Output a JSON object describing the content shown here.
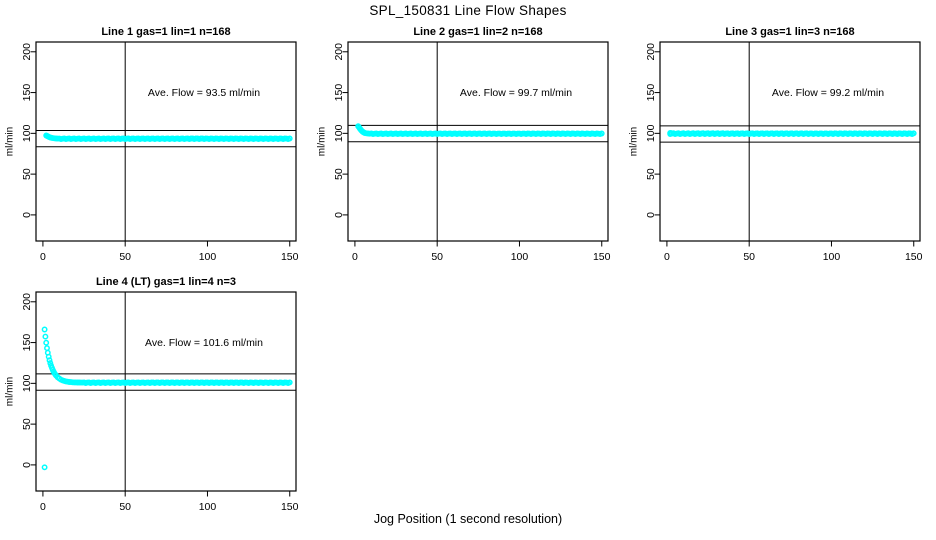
{
  "figure": {
    "title": "SPL_150831  Line Flow Shapes",
    "xlabel": "Jog Position (1 second resolution)",
    "background_color": "#ffffff",
    "marker_color": "#00ffff",
    "axis_color": "#000000"
  },
  "chart_data": [
    {
      "type": "scatter",
      "title": "Line 1 gas=1 lin=1 n=168",
      "gas": 1,
      "lin": 1,
      "n": 168,
      "ave_flow": 93.5,
      "annotation": "Ave. Flow =  93.5  ml/min",
      "ylabel": "ml/min",
      "xticks": [
        0,
        50,
        100,
        150
      ],
      "yticks": [
        0,
        50,
        100,
        150,
        200
      ],
      "xlim": [
        -4.2,
        153.8
      ],
      "ylim": [
        -32,
        212
      ],
      "vline_x": 50,
      "hlines": [
        103.5,
        83.5
      ],
      "grid": false,
      "marker": "open-circle",
      "series": [
        {
          "name": "flow",
          "color": "#00ffff",
          "segments": [
            {
              "pts": [
                [
                  2,
                  97.4
                ],
                [
                  2.6,
                  96.7
                ],
                [
                  3.2,
                  96.0
                ],
                [
                  3.8,
                  95.4
                ],
                [
                  4.5,
                  94.9
                ],
                [
                  5.2,
                  94.5
                ],
                [
                  6,
                  94.2
                ],
                [
                  7,
                  93.9
                ],
                [
                  8,
                  93.7
                ],
                [
                  9,
                  93.6
                ],
                [
                  10,
                  93.5
                ]
              ]
            },
            {
              "flat": [
                11,
                150,
                93.4
              ],
              "jitter": 0.45
            }
          ]
        }
      ]
    },
    {
      "type": "scatter",
      "title": "Line 2 gas=1 lin=2 n=168",
      "gas": 1,
      "lin": 2,
      "n": 168,
      "ave_flow": 99.7,
      "annotation": "Ave. Flow =  99.7  ml/min",
      "ylabel": "ml/min",
      "xticks": [
        0,
        50,
        100,
        150
      ],
      "yticks": [
        0,
        50,
        100,
        150,
        200
      ],
      "xlim": [
        -4.2,
        153.8
      ],
      "ylim": [
        -32,
        212
      ],
      "vline_x": 50,
      "hlines": [
        109.7,
        89.7
      ],
      "grid": false,
      "marker": "open-circle",
      "series": [
        {
          "name": "flow",
          "color": "#00ffff",
          "segments": [
            {
              "pts": [
                [
                  2,
                  108.8
                ],
                [
                  2.5,
                  107.5
                ],
                [
                  3,
                  106.0
                ],
                [
                  3.5,
                  104.6
                ],
                [
                  4,
                  103.4
                ],
                [
                  4.5,
                  102.4
                ],
                [
                  5,
                  101.6
                ],
                [
                  5.5,
                  100.9
                ],
                [
                  6,
                  100.4
                ],
                [
                  7,
                  100.0
                ],
                [
                  8,
                  99.8
                ],
                [
                  9,
                  99.6
                ]
              ]
            },
            {
              "flat": [
                10,
                150,
                99.5
              ],
              "jitter": 0.45
            }
          ]
        }
      ]
    },
    {
      "type": "scatter",
      "title": "Line 3 gas=1 lin=3 n=168",
      "gas": 1,
      "lin": 3,
      "n": 168,
      "ave_flow": 99.2,
      "annotation": "Ave. Flow =  99.2  ml/min",
      "ylabel": "ml/min",
      "xticks": [
        0,
        50,
        100,
        150
      ],
      "yticks": [
        0,
        50,
        100,
        150,
        200
      ],
      "xlim": [
        -4.2,
        153.8
      ],
      "ylim": [
        -32,
        212
      ],
      "vline_x": 50,
      "hlines": [
        109.2,
        89.2
      ],
      "grid": false,
      "marker": "open-circle",
      "series": [
        {
          "name": "flow",
          "color": "#00ffff",
          "segments": [
            {
              "pts": [
                [
                  2,
                  100.6
                ],
                [
                  2.5,
                  100.3
                ],
                [
                  3,
                  100.1
                ]
              ]
            },
            {
              "flat": [
                2,
                150,
                99.7
              ],
              "jitter": 0.55
            }
          ]
        }
      ]
    },
    {
      "type": "scatter",
      "title": "Line 4 (LT) gas=1 lin=4 n=3",
      "gas": 1,
      "lin": 4,
      "n": 3,
      "ave_flow": 101.6,
      "annotation": "Ave. Flow =  101.6  ml/min",
      "ylabel": "ml/min",
      "xticks": [
        0,
        50,
        100,
        150
      ],
      "yticks": [
        0,
        50,
        100,
        150,
        200
      ],
      "xlim": [
        -4.2,
        153.8
      ],
      "ylim": [
        -32,
        212
      ],
      "vline_x": 50,
      "hlines": [
        111.6,
        91.6
      ],
      "grid": false,
      "marker": "open-circle",
      "series": [
        {
          "name": "flow",
          "color": "#00ffff",
          "segments": [
            {
              "pts": [
                [
                  1,
                  -3
                ],
                [
                  1,
                  166
                ],
                [
                  1.5,
                  157.3
                ],
                [
                  2,
                  149.8
                ],
                [
                  2.5,
                  143.2
                ],
                [
                  3,
                  137.6
                ],
                [
                  3.5,
                  132.7
                ],
                [
                  4,
                  128.4
                ],
                [
                  4.5,
                  124.8
                ],
                [
                  5,
                  121.6
                ],
                [
                  5.5,
                  118.8
                ],
                [
                  6,
                  116.4
                ],
                [
                  6.5,
                  114.4
                ],
                [
                  7,
                  112.5
                ],
                [
                  7.5,
                  111.0
                ],
                [
                  8,
                  109.6
                ],
                [
                  9,
                  107.4
                ],
                [
                  10,
                  105.8
                ],
                [
                  11,
                  104.5
                ],
                [
                  12,
                  103.6
                ],
                [
                  13,
                  103.0
                ],
                [
                  14,
                  102.4
                ],
                [
                  15,
                  102.0
                ],
                [
                  16,
                  101.7
                ],
                [
                  17,
                  101.5
                ],
                [
                  18,
                  101.3
                ],
                [
                  19,
                  101.2
                ],
                [
                  20,
                  101.1
                ],
                [
                  21,
                  101.0
                ],
                [
                  22,
                  101.0
                ],
                [
                  23,
                  100.9
                ]
              ]
            },
            {
              "flat": [
                24,
                150,
                100.8
              ],
              "jitter": 0.5
            }
          ]
        }
      ]
    }
  ]
}
